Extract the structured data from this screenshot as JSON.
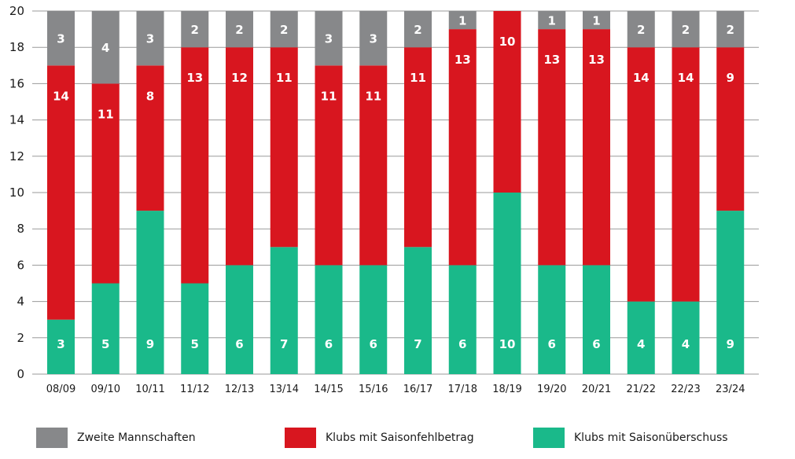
{
  "chart_data": {
    "type": "bar",
    "stacked": true,
    "categories": [
      "08/09",
      "09/10",
      "10/11",
      "11/12",
      "12/13",
      "13/14",
      "14/15",
      "15/16",
      "16/17",
      "17/18",
      "18/19",
      "19/20",
      "20/21",
      "21/22",
      "22/23",
      "23/24"
    ],
    "series": [
      {
        "name": "Klubs mit Saisonüberschuss",
        "color": "#1ab98a",
        "values": [
          3,
          5,
          9,
          5,
          6,
          7,
          6,
          6,
          7,
          6,
          10,
          6,
          6,
          4,
          4,
          9
        ]
      },
      {
        "name": "Klubs mit Saisonfehlbetrag",
        "color": "#d8161f",
        "values": [
          14,
          11,
          8,
          13,
          12,
          11,
          11,
          11,
          11,
          13,
          10,
          13,
          13,
          14,
          14,
          9
        ]
      },
      {
        "name": "Zweite Mannschaften",
        "color": "#87888a",
        "values": [
          3,
          4,
          3,
          2,
          2,
          2,
          3,
          3,
          2,
          1,
          0,
          1,
          1,
          2,
          2,
          2
        ]
      }
    ],
    "ylim": [
      0,
      20
    ],
    "yticks": [
      0,
      2,
      4,
      6,
      8,
      10,
      12,
      14,
      16,
      18,
      20
    ],
    "grid": true,
    "legend_position": "bottom",
    "legend_order": [
      "Zweite Mannschaften",
      "Klubs mit Saisonfehlbetrag",
      "Klubs mit Saisonüberschuss"
    ]
  }
}
